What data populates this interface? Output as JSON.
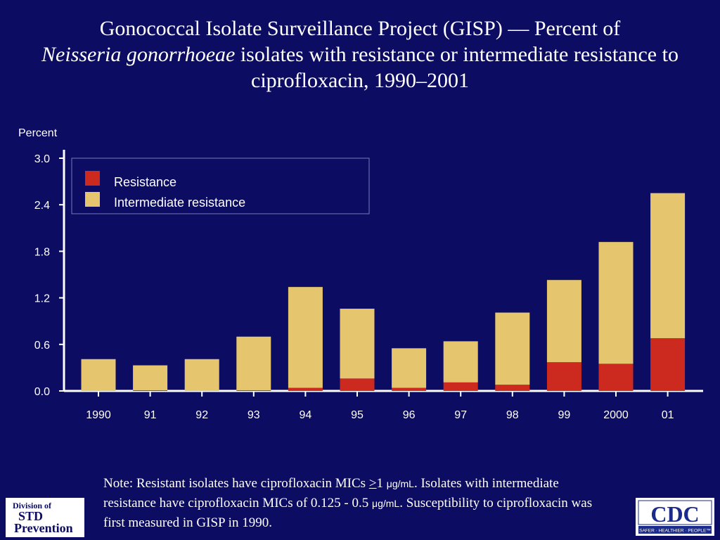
{
  "title": {
    "part1": "Gonococcal Isolate Surveillance Project (GISP) — Percent of",
    "italic": "Neisseria gonorrhoeae",
    "part2": " isolates with resistance or intermediate resistance to ciprofloxacin, 1990–2001"
  },
  "chart_data": {
    "type": "bar",
    "stacked": true,
    "categories": [
      "1990",
      "91",
      "92",
      "93",
      "94",
      "95",
      "96",
      "97",
      "98",
      "99",
      "2000",
      "01"
    ],
    "series": [
      {
        "name": "Resistance",
        "color": "#cc2a1e",
        "values": [
          0.0,
          0.01,
          0.0,
          0.01,
          0.04,
          0.16,
          0.04,
          0.11,
          0.08,
          0.37,
          0.35,
          0.68
        ]
      },
      {
        "name": "Intermediate resistance",
        "color": "#e5c66e",
        "values": [
          0.41,
          0.32,
          0.41,
          0.69,
          1.3,
          0.9,
          0.51,
          0.53,
          0.93,
          1.06,
          1.57,
          1.87
        ]
      }
    ],
    "ylabel": "Percent",
    "yticks": [
      "0.0",
      "0.6",
      "1.2",
      "1.8",
      "2.4",
      "3.0"
    ],
    "ylim": [
      0,
      3.0
    ],
    "legend_position": "top-left"
  },
  "note": {
    "prefix": "Note: Resistant isolates have ciprofloxacin MICs ",
    "symbol": ">",
    "value1": "1 ",
    "unit1": "μg/mL",
    "mid": ". Isolates with intermediate resistance have ciprofloxacin MICs of 0.125 - 0.5 ",
    "unit2": "μg/mL",
    "end": ". Susceptibility to ciprofloxacin was first measured in GISP in 1990."
  },
  "logos": {
    "std_line1": "Division of",
    "std_line2": "STD",
    "std_line3": "Prevention",
    "cdc_text": "CDC",
    "cdc_tagline": "SAFER · HEALTHIER · PEOPLE™"
  },
  "colors": {
    "background": "#0c0c62",
    "axis": "#ffffff",
    "legend_border": "#7a7ab8"
  }
}
